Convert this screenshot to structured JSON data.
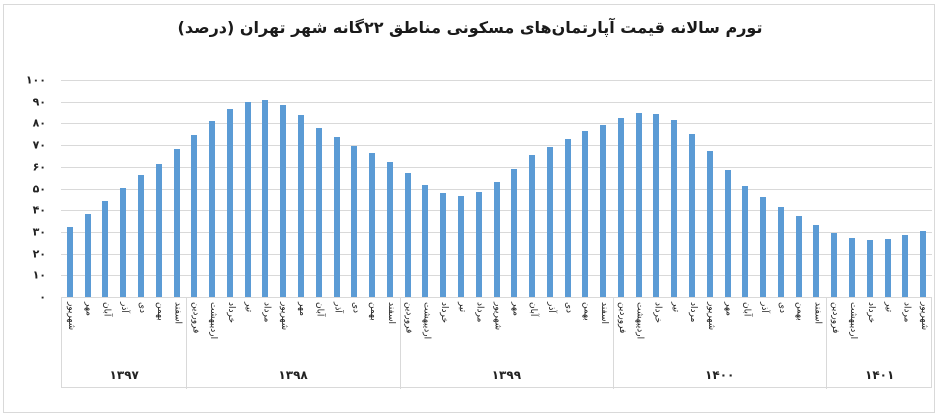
{
  "title": "تورم سالانه قیمت آپارتمان‌های مسکونی مناطق ۲۲گانه شهر تهران (درصد)",
  "colors": {
    "bar": "#5b9bd5",
    "grid": "#d9d9d9",
    "border": "#d9d9d9"
  },
  "y_ticks": [
    "۱۰۰",
    "۹۰",
    "۸۰",
    "۷۰",
    "۶۰",
    "۵۰",
    "۴۰",
    "۳۰",
    "۲۰",
    "۱۰",
    "۰"
  ],
  "groups": [
    {
      "label": "۱۳۹۷",
      "months": [
        "شهریور",
        "مهر",
        "آبان",
        "آذر",
        "دی",
        "بهمن",
        "اسفند"
      ]
    },
    {
      "label": "۱۳۹۸",
      "months": [
        "فروردین",
        "اردیبهشت",
        "خرداد",
        "تیر",
        "مرداد",
        "شهریور",
        "مهر",
        "آبان",
        "آذر",
        "دی",
        "بهمن",
        "اسفند"
      ]
    },
    {
      "label": "۱۳۹۹",
      "months": [
        "فروردین",
        "اردیبهشت",
        "خرداد",
        "تیر",
        "مرداد",
        "شهریور",
        "مهر",
        "آبان",
        "آذر",
        "دی",
        "بهمن",
        "اسفند"
      ]
    },
    {
      "label": "۱۴۰۰",
      "months": [
        "فروردین",
        "اردیبهشت",
        "خرداد",
        "تیر",
        "مرداد",
        "شهریور",
        "مهر",
        "آبان",
        "آذر",
        "دی",
        "بهمن",
        "اسفند"
      ]
    },
    {
      "label": "۱۴۰۱",
      "months": [
        "فروردین",
        "اردیبهشت",
        "خرداد",
        "تیر",
        "مرداد",
        "شهریور"
      ]
    }
  ],
  "chart_data": {
    "type": "bar",
    "title": "تورم سالانه قیمت آپارتمان‌های مسکونی مناطق ۲۲گانه شهر تهران (درصد)",
    "xlabel": "",
    "ylabel": "درصد",
    "ylim": [
      0,
      100
    ],
    "y_tick_step": 10,
    "grid": true,
    "legend": null,
    "categories": [
      "1397 شهریور",
      "1397 مهر",
      "1397 آبان",
      "1397 آذر",
      "1397 دی",
      "1397 بهمن",
      "1397 اسفند",
      "1398 فروردین",
      "1398 اردیبهشت",
      "1398 خرداد",
      "1398 تیر",
      "1398 مرداد",
      "1398 شهریور",
      "1398 مهر",
      "1398 آبان",
      "1398 آذر",
      "1398 دی",
      "1398 بهمن",
      "1398 اسفند",
      "1399 فروردین",
      "1399 اردیبهشت",
      "1399 خرداد",
      "1399 تیر",
      "1399 مرداد",
      "1399 شهریور",
      "1399 مهر",
      "1399 آبان",
      "1399 آذر",
      "1399 دی",
      "1399 بهمن",
      "1399 اسفند",
      "1400 فروردین",
      "1400 اردیبهشت",
      "1400 خرداد",
      "1400 تیر",
      "1400 مرداد",
      "1400 شهریور",
      "1400 مهر",
      "1400 آبان",
      "1400 آذر",
      "1400 دی",
      "1400 بهمن",
      "1400 اسفند",
      "1401 فروردین",
      "1401 اردیبهشت",
      "1401 خرداد",
      "1401 تیر",
      "1401 مرداد",
      "1401 شهریور"
    ],
    "values": [
      32.4,
      38.3,
      44.4,
      50.4,
      56.3,
      61.5,
      68.0,
      74.5,
      81.2,
      86.6,
      90.0,
      90.6,
      88.3,
      83.8,
      78.1,
      73.7,
      69.8,
      66.2,
      62.2,
      57.1,
      51.6,
      47.9,
      46.4,
      48.5,
      53.0,
      58.8,
      65.3,
      69.1,
      72.8,
      76.4,
      79.3,
      82.7,
      84.8,
      84.5,
      81.6,
      75.1,
      67.1,
      58.7,
      51.2,
      46.3,
      41.7,
      37.2,
      33.0,
      29.6,
      27.4,
      26.5,
      26.9,
      28.4,
      30.4
    ]
  }
}
